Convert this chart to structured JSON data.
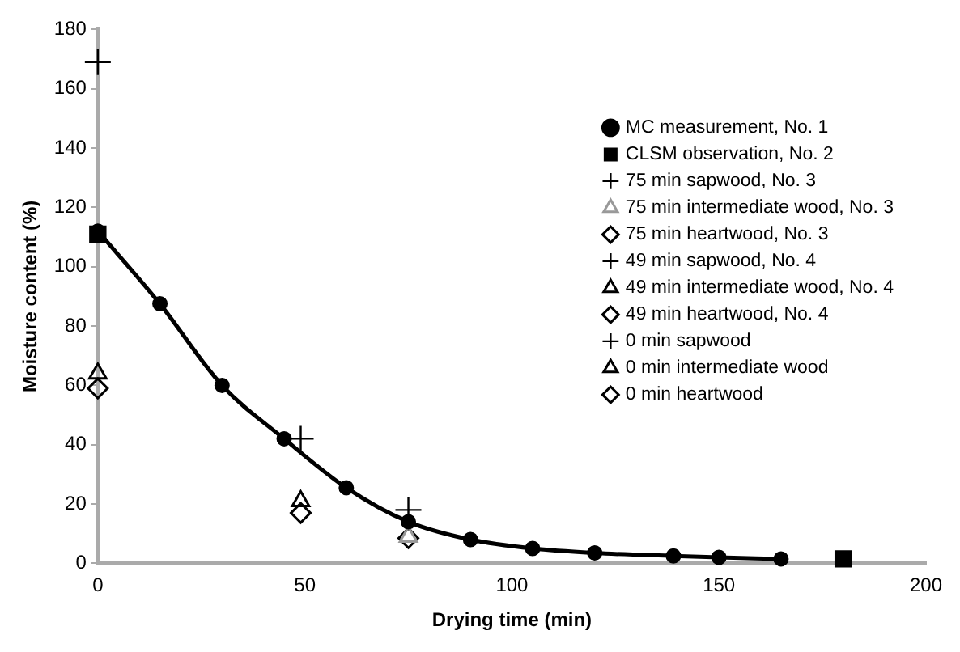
{
  "chart_data": {
    "type": "scatter",
    "xlabel": "Drying time (min)",
    "ylabel": "Moisture content (%)",
    "xlim": [
      0,
      200
    ],
    "xticks": [
      0,
      50,
      100,
      150,
      200
    ],
    "ylim": [
      0,
      180
    ],
    "yticks": [
      0,
      20,
      40,
      60,
      80,
      100,
      120,
      140,
      160,
      180
    ],
    "grid": false,
    "legend": "top right",
    "series": [
      {
        "name": "MC measurement, No. 1",
        "type": "line",
        "marker": "circle",
        "color": "#000000",
        "x": [
          0,
          15,
          30,
          45,
          60,
          75,
          90,
          105,
          120,
          139,
          150,
          165
        ],
        "values": [
          112,
          87.5,
          60,
          42,
          25.5,
          14,
          8,
          5,
          3.5,
          2.5,
          2,
          1.5
        ]
      },
      {
        "name": "CLSM observation, No. 2",
        "marker": "square",
        "color": "#000000",
        "x": [
          0,
          180
        ],
        "values": [
          111,
          1.5
        ]
      },
      {
        "name": "75 min sapwood, No. 3",
        "marker": "cross",
        "color": "#000000",
        "x": [
          75
        ],
        "values": [
          18
        ]
      },
      {
        "name": "75 min intermediate wood, No. 3",
        "marker": "triangle",
        "color": "#999999",
        "x": [
          75
        ],
        "values": [
          9
        ]
      },
      {
        "name": "75 min heartwood, No. 3",
        "marker": "diamond",
        "color": "#000000",
        "x": [
          75
        ],
        "values": [
          8.5
        ]
      },
      {
        "name": "49 min sapwood, No. 4",
        "marker": "cross",
        "color": "#000000",
        "x": [
          49
        ],
        "values": [
          42
        ]
      },
      {
        "name": "49 min intermediate wood, No. 4",
        "marker": "triangle",
        "color": "#000000",
        "x": [
          49
        ],
        "values": [
          21
        ]
      },
      {
        "name": "49 min heartwood, No. 4",
        "marker": "diamond",
        "color": "#000000",
        "x": [
          49
        ],
        "values": [
          17
        ]
      },
      {
        "name": "0 min sapwood",
        "marker": "cross",
        "color": "#000000",
        "x": [
          0
        ],
        "values": [
          169
        ]
      },
      {
        "name": "0 min intermediate wood",
        "marker": "triangle",
        "color": "#000000",
        "x": [
          0
        ],
        "values": [
          64
        ]
      },
      {
        "name": "0 min heartwood",
        "marker": "diamond",
        "color": "#000000",
        "x": [
          0
        ],
        "values": [
          59
        ]
      }
    ]
  }
}
